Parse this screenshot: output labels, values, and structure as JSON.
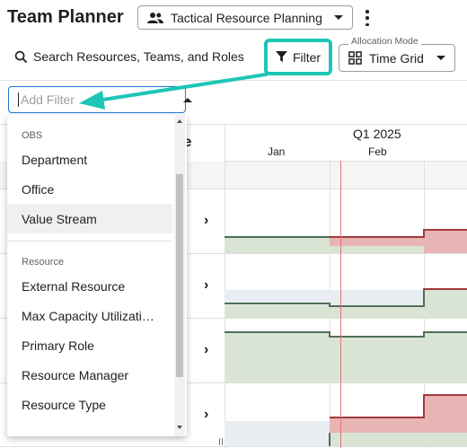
{
  "header": {
    "title": "Team Planner",
    "view_select": {
      "value": "Tactical Resource Planning",
      "icon": "people-icon"
    },
    "more_icon": "vertical-dots-icon"
  },
  "toolbar": {
    "search_label": "Search Resources, Teams, and Roles",
    "filter_label": "Filter",
    "allocation_mode": {
      "legend": "Allocation Mode",
      "value": "Time Grid",
      "icon": "grid-icon"
    },
    "highlight_color": "#1ec6b5"
  },
  "filter_input": {
    "placeholder": "Add Filter"
  },
  "dropdown": {
    "groups": [
      {
        "label": "OBS",
        "items": [
          "Department",
          "Office",
          "Value Stream"
        ]
      },
      {
        "label": "Resource",
        "items": [
          "External Resource",
          "Max Capacity Utilizati…",
          "Primary Role",
          "Resource Manager",
          "Resource Type"
        ]
      }
    ],
    "hovered_item": "Value Stream"
  },
  "grid": {
    "column_header_partial": "le",
    "period": "Q1 2025",
    "months": [
      "Jan",
      "Feb"
    ],
    "colors": {
      "capacity_fill": "#d9e4d4",
      "over_fill": "#e8b4b4",
      "over_line": "#a33a3a",
      "capacity_line": "#4f6f58",
      "unused_fill": "#e9edf2",
      "today": "#e57373"
    }
  }
}
